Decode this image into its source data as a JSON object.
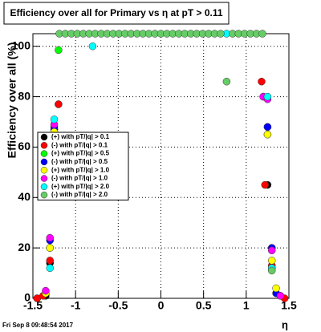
{
  "chart_data": {
    "type": "scatter",
    "title": "Efficiency over all for Primary vs   η at pT > 0.11",
    "x_label": "η",
    "y_label": "Efficiency over all (%)",
    "footer": "Fri Sep  8 09:48:54 2017",
    "xlim": [
      -1.5,
      1.5
    ],
    "ylim": [
      0,
      105
    ],
    "xticks": [
      -1.5,
      -1,
      -0.5,
      0,
      0.5,
      1,
      1.5
    ],
    "yticks": [
      0,
      20,
      40,
      60,
      80,
      100
    ],
    "grid": true,
    "series": [
      {
        "name": "(+) with pT/|q| > 0.1",
        "color": "#000000",
        "x": [
          -1.45,
          -1.35,
          -1.3,
          -1.25,
          -1.2,
          1.2,
          1.25,
          1.3,
          1.4
        ],
        "values": [
          0,
          1,
          14,
          68,
          77,
          80,
          45,
          20,
          1
        ]
      },
      {
        "name": "(-) with pT/|q| > 0.1",
        "color": "#ff0000",
        "x": [
          -1.45,
          -1.38,
          -1.3,
          -1.25,
          -1.2,
          1.18,
          1.22,
          1.25,
          1.3,
          1.45
        ],
        "values": [
          0,
          1,
          15,
          45,
          77,
          86,
          45,
          68,
          13,
          0
        ]
      },
      {
        "name": "(+) with pT/|q| > 0.5",
        "color": "#00ff00",
        "x": [
          -1.3,
          -1.25,
          -1.2,
          1.25,
          1.3
        ],
        "values": [
          20,
          67,
          98.5,
          65,
          12
        ]
      },
      {
        "name": "(-) with pT/|q| > 0.5",
        "color": "#0000ff",
        "x": [
          -1.3,
          -1.25,
          1.25,
          1.3,
          1.35
        ],
        "values": [
          23,
          67,
          68,
          20,
          2
        ]
      },
      {
        "name": "(+) with pT/|q| > 1.0",
        "color": "#ffff00",
        "x": [
          -1.35,
          -1.3,
          -1.25,
          1.25,
          1.3,
          1.35
        ],
        "values": [
          2,
          20,
          66,
          65,
          15,
          4
        ]
      },
      {
        "name": "(-) with pT/|q| > 1.0",
        "color": "#ff00ff",
        "x": [
          -1.35,
          -1.3,
          -1.25,
          1.2,
          1.25,
          1.3,
          1.4
        ],
        "values": [
          3,
          24,
          69,
          80,
          79,
          19,
          1
        ]
      },
      {
        "name": "(+) with pT/|q| > 2.0",
        "color": "#00ffff",
        "x": [
          -1.3,
          -1.25,
          -0.8,
          0.77,
          1.25,
          1.3
        ],
        "values": [
          12,
          71,
          100,
          105,
          80,
          12
        ]
      },
      {
        "name": "(-) with pT/|q| > 2.0",
        "color": "#66cc66",
        "x": [
          -1.19,
          -1.12,
          -1.05,
          -0.98,
          -0.91,
          -0.84,
          -0.77,
          -0.7,
          -0.63,
          -0.56,
          -0.49,
          -0.42,
          -0.35,
          -0.28,
          -0.21,
          -0.14,
          -0.07,
          0,
          0.07,
          0.14,
          0.21,
          0.28,
          0.35,
          0.42,
          0.49,
          0.56,
          0.63,
          0.7,
          0.77,
          0.84,
          0.91,
          0.98,
          1.05,
          1.12,
          1.19,
          1.3
        ],
        "values": [
          105,
          105,
          105,
          105,
          105,
          105,
          105,
          105,
          105,
          105,
          105,
          105,
          105,
          105,
          105,
          105,
          105,
          105,
          105,
          105,
          105,
          105,
          105,
          105,
          105,
          105,
          105,
          105,
          86,
          105,
          105,
          105,
          105,
          105,
          105,
          11
        ]
      }
    ]
  }
}
